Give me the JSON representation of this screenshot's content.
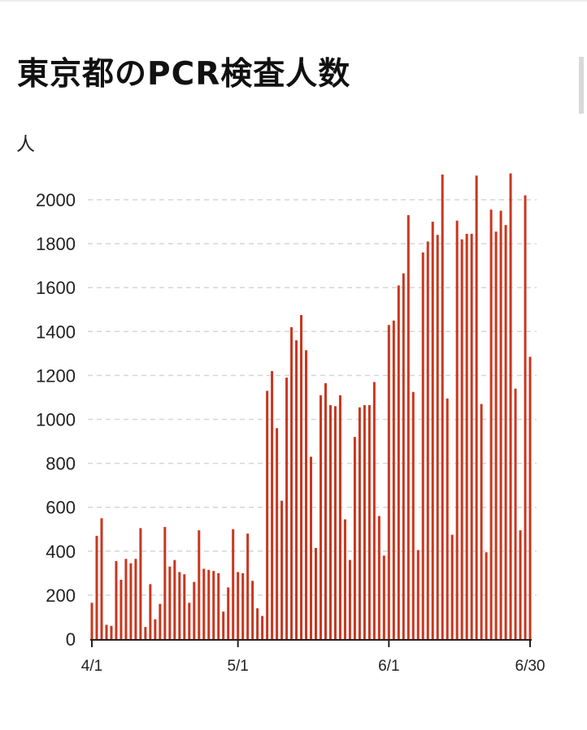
{
  "page": {
    "title": "東京都のPCR検査人数",
    "y_unit": "人"
  },
  "colors": {
    "bar": "#c8371f",
    "grid": "#d6d6d6",
    "axis": "#222222",
    "text": "#222222"
  },
  "chart_data": {
    "type": "bar",
    "title": "東京都のPCR検査人数",
    "ylabel": "人",
    "ylim": [
      0,
      2150
    ],
    "yticks": [
      0,
      200,
      400,
      600,
      800,
      1000,
      1200,
      1400,
      1600,
      1800,
      2000
    ],
    "grid": true,
    "x_start": "4/1",
    "x_end": "6/30",
    "xticks": [
      {
        "label": "4/1",
        "index": 0
      },
      {
        "label": "5/1",
        "index": 30
      },
      {
        "label": "6/1",
        "index": 61
      },
      {
        "label": "6/30",
        "index": 90
      }
    ],
    "values": [
      165,
      470,
      550,
      65,
      60,
      355,
      270,
      365,
      345,
      365,
      505,
      55,
      250,
      90,
      160,
      510,
      330,
      360,
      305,
      295,
      165,
      260,
      495,
      320,
      315,
      310,
      300,
      125,
      235,
      500,
      305,
      300,
      480,
      265,
      140,
      105,
      1130,
      1220,
      960,
      630,
      1190,
      1420,
      1360,
      1475,
      1315,
      830,
      415,
      1110,
      1165,
      1065,
      1060,
      1110,
      545,
      360,
      920,
      1055,
      1065,
      1065,
      1170,
      560,
      380,
      1430,
      1450,
      1610,
      1665,
      1930,
      1125,
      405,
      1760,
      1810,
      1900,
      1840,
      2115,
      1095,
      475,
      1905,
      1820,
      1845,
      1845,
      2110,
      1070,
      395,
      1955,
      1855,
      1950,
      1885,
      2120,
      1140,
      495,
      2020,
      1285
    ]
  }
}
